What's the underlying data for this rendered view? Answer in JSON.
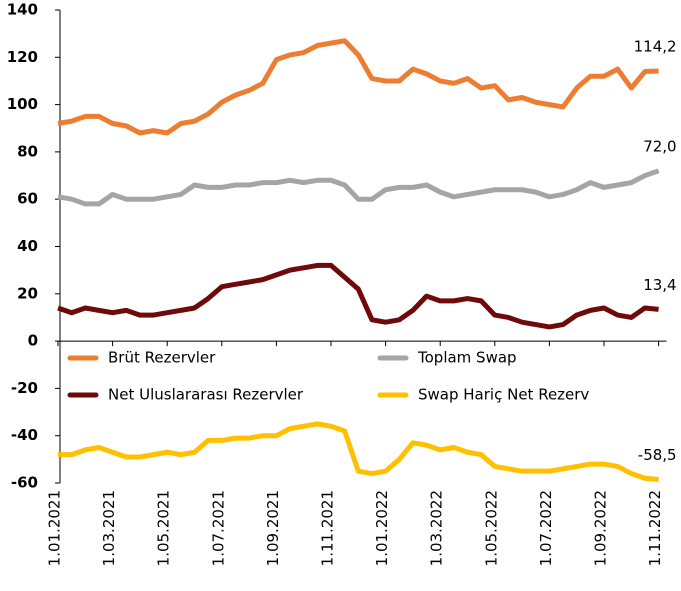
{
  "chart_data": {
    "type": "line",
    "categories": [
      "1.01.2021",
      null,
      null,
      null,
      "1.03.2021",
      null,
      null,
      null,
      "1.05.2021",
      null,
      null,
      null,
      "1.07.2021",
      null,
      null,
      null,
      "1.09.2021",
      null,
      null,
      null,
      "1.11.2021",
      null,
      null,
      null,
      "1.01.2022",
      null,
      null,
      null,
      "1.03.2022",
      null,
      null,
      null,
      "1.05.2022",
      null,
      null,
      null,
      "1.07.2022",
      null,
      null,
      null,
      "1.09.2022",
      null,
      null,
      null,
      "1.11.2022"
    ],
    "series": [
      {
        "name": "Brüt Rezervler",
        "color": "#ed7d31",
        "values": [
          92,
          93,
          95,
          95,
          92,
          91,
          88,
          89,
          88,
          92,
          93,
          96,
          101,
          104,
          106,
          109,
          119,
          121,
          122,
          125,
          126,
          127,
          121,
          111,
          110,
          110,
          115,
          113,
          110,
          109,
          111,
          107,
          108,
          102,
          103,
          101,
          100,
          99,
          107,
          112,
          112,
          115,
          107,
          114,
          114.2
        ],
        "value_labels": [
          null,
          null,
          null,
          null,
          null,
          null,
          null,
          null,
          null,
          null,
          null,
          null,
          null,
          null,
          null,
          null,
          null,
          null,
          null,
          null,
          null,
          null,
          null,
          null,
          null,
          null,
          null,
          null,
          null,
          null,
          null,
          null,
          null,
          null,
          null,
          null,
          null,
          null,
          null,
          null,
          null,
          null,
          null,
          null,
          "114,2"
        ]
      },
      {
        "name": "Toplam Swap",
        "color": "#a5a5a5",
        "values": [
          61,
          60,
          58,
          58,
          62,
          60,
          60,
          60,
          61,
          62,
          66,
          65,
          65,
          66,
          66,
          67,
          67,
          68,
          67,
          68,
          68,
          66,
          60,
          60,
          64,
          65,
          65,
          66,
          63,
          61,
          62,
          63,
          64,
          64,
          64,
          63,
          61,
          62,
          64,
          67,
          65,
          66,
          67,
          70,
          72
        ],
        "value_labels": [
          null,
          null,
          null,
          null,
          null,
          null,
          null,
          null,
          null,
          null,
          null,
          null,
          null,
          null,
          null,
          null,
          null,
          null,
          null,
          null,
          null,
          null,
          null,
          null,
          null,
          null,
          null,
          null,
          null,
          null,
          null,
          null,
          null,
          null,
          null,
          null,
          null,
          null,
          null,
          null,
          null,
          null,
          null,
          null,
          "72,0"
        ]
      },
      {
        "name": "Net Uluslararası Rezervler",
        "color": "#6e0a0a",
        "values": [
          14,
          12,
          14,
          13,
          12,
          13,
          11,
          11,
          12,
          13,
          14,
          18,
          23,
          24,
          25,
          26,
          28,
          30,
          31,
          32,
          32,
          27,
          22,
          9,
          8,
          9,
          13,
          19,
          17,
          17,
          18,
          17,
          11,
          10,
          8,
          7,
          6,
          7,
          11,
          13,
          14,
          11,
          10,
          14,
          13.4
        ],
        "value_labels": [
          null,
          null,
          null,
          null,
          null,
          null,
          null,
          null,
          null,
          null,
          null,
          null,
          null,
          null,
          null,
          null,
          null,
          null,
          null,
          null,
          null,
          null,
          null,
          null,
          null,
          null,
          null,
          null,
          null,
          null,
          null,
          null,
          null,
          null,
          null,
          null,
          null,
          null,
          null,
          null,
          null,
          null,
          null,
          null,
          "13,4"
        ]
      },
      {
        "name": "Swap Hariç Net Rezerv",
        "color": "#ffc000",
        "values": [
          -48,
          -48,
          -46,
          -45,
          -47,
          -49,
          -49,
          -48,
          -47,
          -48,
          -47,
          -42,
          -42,
          -41,
          -41,
          -40,
          -40,
          -37,
          -36,
          -35,
          -36,
          -38,
          -55,
          -56,
          -55,
          -50,
          -43,
          -44,
          -46,
          -45,
          -47,
          -48,
          -53,
          -54,
          -55,
          -55,
          -55,
          -54,
          -53,
          -52,
          -52,
          -53,
          -56,
          -58,
          -58.5
        ],
        "value_labels": [
          null,
          null,
          null,
          null,
          null,
          null,
          null,
          null,
          null,
          null,
          null,
          null,
          null,
          null,
          null,
          null,
          null,
          null,
          null,
          null,
          null,
          null,
          null,
          null,
          null,
          null,
          null,
          null,
          null,
          null,
          null,
          null,
          null,
          null,
          null,
          null,
          null,
          null,
          null,
          null,
          null,
          null,
          null,
          null,
          "-58,5"
        ]
      }
    ],
    "ylim": [
      -60,
      140
    ],
    "yticks": [
      -60,
      -40,
      -20,
      0,
      20,
      40,
      60,
      80,
      100,
      120,
      140
    ],
    "grid": false,
    "legend": "center"
  }
}
